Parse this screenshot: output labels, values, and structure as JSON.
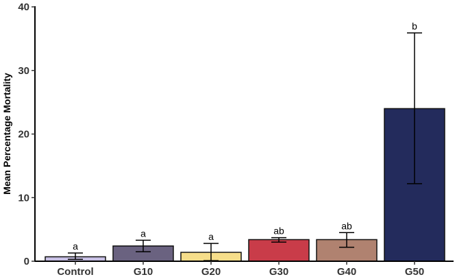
{
  "chart_data": {
    "type": "bar",
    "categories": [
      "Control",
      "G10",
      "G20",
      "G30",
      "G40",
      "G50"
    ],
    "values": [
      0.7,
      2.4,
      1.4,
      3.4,
      3.4,
      24.0
    ],
    "error_low": [
      0.3,
      1.5,
      0.1,
      3.0,
      2.2,
      12.2
    ],
    "error_high": [
      1.3,
      3.3,
      2.8,
      3.7,
      4.5,
      35.9
    ],
    "significance_labels": [
      "a",
      "a",
      "a",
      "ab",
      "ab",
      "b"
    ],
    "bar_colors": [
      "#C9C1E6",
      "#6A6280",
      "#F6DE8A",
      "#C93C49",
      "#B08270",
      "#232B5C"
    ],
    "xlabel": "",
    "ylabel": "Mean Percentage Mortality",
    "ylim": [
      0,
      40
    ],
    "yticks": [
      0,
      10,
      20,
      30,
      40
    ],
    "grid": false,
    "title": ""
  }
}
